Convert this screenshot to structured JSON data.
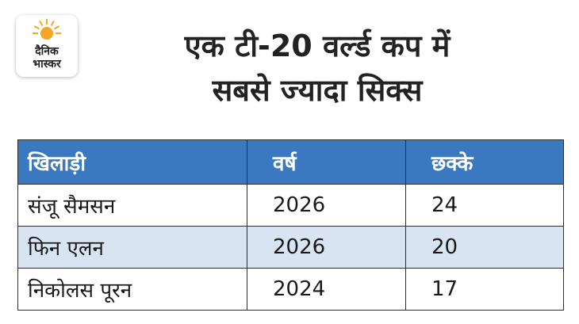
{
  "logo": {
    "line1": "दैनिक",
    "line2": "भास्कर",
    "accent_color": "#f5a623"
  },
  "headline": {
    "line1": "एक टी-20 वर्ल्ड कप में",
    "line2": "सबसे ज्यादा सिक्स"
  },
  "table": {
    "headers": [
      "खिलाड़ी",
      "वर्ष",
      "छक्के"
    ],
    "rows": [
      {
        "player": "संजू सैमसन",
        "year": "2026",
        "sixes": "24"
      },
      {
        "player": "फिन एलन",
        "year": "2026",
        "sixes": "20"
      },
      {
        "player": "निकोलस पूरन",
        "year": "2024",
        "sixes": "17"
      }
    ],
    "header_color": "#3a78bf",
    "alt_row_color": "#d8e4f1"
  }
}
